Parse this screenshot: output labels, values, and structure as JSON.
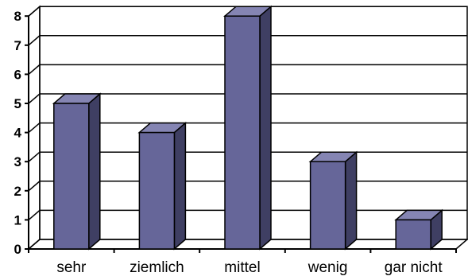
{
  "chart_data": {
    "type": "bar",
    "categories": [
      "sehr",
      "ziemlich",
      "mittel",
      "wenig",
      "gar nicht"
    ],
    "values": [
      5,
      4,
      8,
      3,
      1
    ],
    "ylim": [
      0,
      8
    ],
    "yticks": [
      "0",
      "1",
      "2",
      "3",
      "4",
      "5",
      "6",
      "7",
      "8"
    ],
    "grid": true,
    "style": "3d-column",
    "colors": {
      "bar_front": "#666699",
      "bar_top": "#8585b3",
      "bar_side": "#3f3f63",
      "gridline": "#000000",
      "axis": "#000000"
    }
  }
}
